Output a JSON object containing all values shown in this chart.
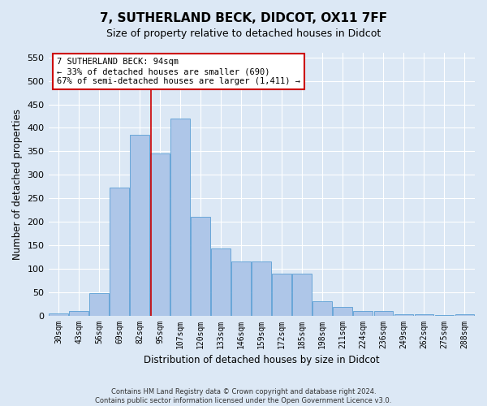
{
  "title1": "7, SUTHERLAND BECK, DIDCOT, OX11 7FF",
  "title2": "Size of property relative to detached houses in Didcot",
  "xlabel": "Distribution of detached houses by size in Didcot",
  "ylabel": "Number of detached properties",
  "footnote1": "Contains HM Land Registry data © Crown copyright and database right 2024.",
  "footnote2": "Contains public sector information licensed under the Open Government Licence v3.0.",
  "categories": [
    "30sqm",
    "43sqm",
    "56sqm",
    "69sqm",
    "82sqm",
    "95sqm",
    "107sqm",
    "120sqm",
    "133sqm",
    "146sqm",
    "159sqm",
    "172sqm",
    "185sqm",
    "198sqm",
    "211sqm",
    "224sqm",
    "236sqm",
    "249sqm",
    "262sqm",
    "275sqm",
    "288sqm"
  ],
  "values": [
    5,
    10,
    48,
    272,
    385,
    345,
    420,
    210,
    143,
    115,
    115,
    90,
    90,
    30,
    18,
    10,
    10,
    3,
    3,
    1,
    3
  ],
  "bar_color": "#aec6e8",
  "bar_edge_color": "#5a9fd4",
  "annotation_text": "7 SUTHERLAND BECK: 94sqm\n← 33% of detached houses are smaller (690)\n67% of semi-detached houses are larger (1,411) →",
  "annotation_box_color": "#ffffff",
  "annotation_box_edge": "#cc0000",
  "vline_color": "#cc0000",
  "vline_index": 4.55,
  "ylim": [
    0,
    560
  ],
  "yticks": [
    0,
    50,
    100,
    150,
    200,
    250,
    300,
    350,
    400,
    450,
    500,
    550
  ],
  "background_color": "#dce8f5",
  "grid_color": "#ffffff",
  "title1_fontsize": 11,
  "title2_fontsize": 9,
  "annot_fontsize": 7.5,
  "xlabel_fontsize": 8.5,
  "ylabel_fontsize": 8.5,
  "xtick_fontsize": 7,
  "ytick_fontsize": 8
}
